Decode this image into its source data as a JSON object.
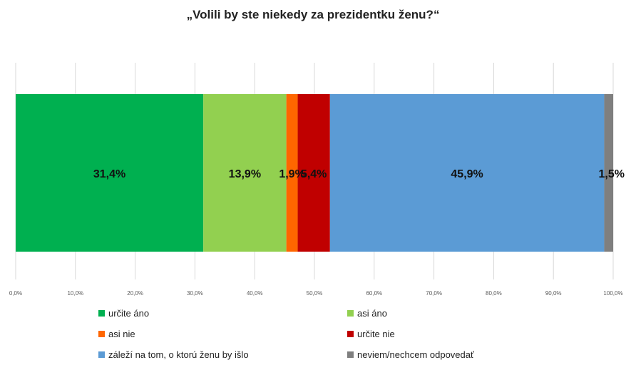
{
  "chart_data": {
    "type": "bar",
    "orientation": "horizontal",
    "stacked": true,
    "title": "„Volili by ste niekedy za prezidentku ženu?“",
    "xlabel": "",
    "ylabel": "",
    "xlim": [
      0,
      100
    ],
    "x_ticks": [
      "0,0%",
      "10,0%",
      "20,0%",
      "30,0%",
      "40,0%",
      "50,0%",
      "60,0%",
      "70,0%",
      "80,0%",
      "90,0%",
      "100,0%"
    ],
    "grid": true,
    "legend_position": "bottom",
    "series": [
      {
        "name": "určite áno",
        "value": 31.4,
        "label": "31,4%",
        "color": "#00b050"
      },
      {
        "name": "asi áno",
        "value": 13.9,
        "label": "13,9%",
        "color": "#92d050"
      },
      {
        "name": "asi nie",
        "value": 1.9,
        "label": "1,9%",
        "color": "#ff6600"
      },
      {
        "name": "určite nie",
        "value": 5.4,
        "label": "5,4%",
        "color": "#c00000"
      },
      {
        "name": "záleží na tom, o ktorú ženu by išlo",
        "value": 45.9,
        "label": "45,9%",
        "color": "#5b9bd5"
      },
      {
        "name": "neviem/nechcem odpovedať",
        "value": 1.5,
        "label": "1,5%",
        "color": "#7f7f7f"
      }
    ]
  }
}
